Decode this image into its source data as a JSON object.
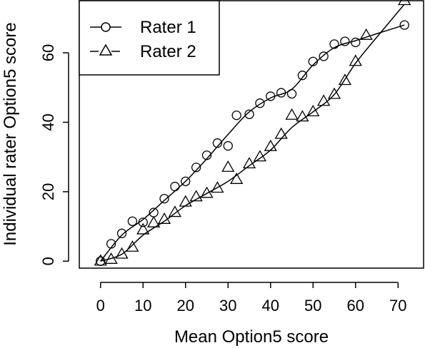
{
  "chart_data": {
    "type": "scatter",
    "title": "",
    "xlabel": "Mean Option5 score",
    "ylabel": "Individual rater Option5 score",
    "xlim": [
      -5,
      76
    ],
    "ylim": [
      -2,
      75
    ],
    "x_ticks": [
      0,
      10,
      20,
      30,
      40,
      50,
      60,
      70
    ],
    "y_ticks": [
      0,
      20,
      40,
      60
    ],
    "grid": false,
    "legend": {
      "position": "top-left"
    },
    "series": [
      {
        "name": "Rater 1",
        "marker": "circle",
        "points": [
          [
            0,
            0
          ],
          [
            2.5,
            5
          ],
          [
            5,
            8
          ],
          [
            7.5,
            11.5
          ],
          [
            10,
            11.2
          ],
          [
            12.5,
            14
          ],
          [
            15,
            18
          ],
          [
            17.5,
            21.5
          ],
          [
            20,
            23
          ],
          [
            22.5,
            27
          ],
          [
            25,
            30.5
          ],
          [
            27.5,
            34
          ],
          [
            30,
            33.2
          ],
          [
            32,
            42
          ],
          [
            35,
            42.3
          ],
          [
            37.5,
            45.5
          ],
          [
            40,
            47.5
          ],
          [
            42.5,
            48.5
          ],
          [
            45,
            48.2
          ],
          [
            47.5,
            53.5
          ],
          [
            50,
            57.5
          ],
          [
            52.5,
            59
          ],
          [
            55,
            62.5
          ],
          [
            57.5,
            63.3
          ],
          [
            60,
            63
          ],
          [
            71.5,
            68
          ]
        ],
        "fit": [
          [
            0,
            0
          ],
          [
            5,
            7.5
          ],
          [
            10,
            12
          ],
          [
            15,
            17.5
          ],
          [
            20,
            23
          ],
          [
            25,
            29.5
          ],
          [
            30,
            36.5
          ],
          [
            35,
            43
          ],
          [
            40,
            47
          ],
          [
            45,
            49.5
          ],
          [
            50,
            56.5
          ],
          [
            55,
            61.5
          ],
          [
            60,
            63.5
          ],
          [
            65,
            65.5
          ],
          [
            71.5,
            68
          ]
        ]
      },
      {
        "name": "Rater 2",
        "marker": "triangle",
        "points": [
          [
            0,
            0
          ],
          [
            2.5,
            0.5
          ],
          [
            5,
            2
          ],
          [
            7.5,
            4
          ],
          [
            10,
            9
          ],
          [
            12.5,
            11
          ],
          [
            15,
            12
          ],
          [
            17.5,
            14
          ],
          [
            20,
            17
          ],
          [
            22.5,
            18.5
          ],
          [
            25,
            19.5
          ],
          [
            27.5,
            21
          ],
          [
            30,
            27
          ],
          [
            32,
            23.5
          ],
          [
            35,
            28
          ],
          [
            37.5,
            30
          ],
          [
            40,
            33
          ],
          [
            42.5,
            36.5
          ],
          [
            45,
            42
          ],
          [
            47.5,
            41.5
          ],
          [
            50,
            43
          ],
          [
            52.5,
            46
          ],
          [
            55,
            48
          ],
          [
            57.5,
            52
          ],
          [
            60,
            57.5
          ],
          [
            62.5,
            65
          ],
          [
            71.5,
            75
          ]
        ],
        "fit": [
          [
            0,
            0
          ],
          [
            5,
            2
          ],
          [
            10,
            7.5
          ],
          [
            15,
            11.5
          ],
          [
            20,
            16
          ],
          [
            25,
            19.5
          ],
          [
            30,
            23
          ],
          [
            35,
            27.5
          ],
          [
            40,
            32
          ],
          [
            45,
            38.5
          ],
          [
            50,
            43
          ],
          [
            55,
            48
          ],
          [
            60,
            57
          ],
          [
            65,
            64.5
          ],
          [
            71.5,
            74
          ]
        ]
      }
    ]
  }
}
